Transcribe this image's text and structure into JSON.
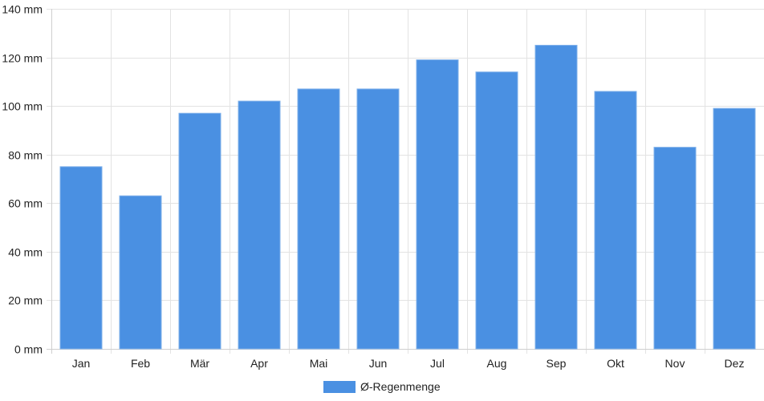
{
  "chart_data": {
    "type": "bar",
    "categories": [
      "Jan",
      "Feb",
      "Mär",
      "Apr",
      "Mai",
      "Jun",
      "Jul",
      "Aug",
      "Sep",
      "Okt",
      "Nov",
      "Dez"
    ],
    "series": [
      {
        "name": "Ø-Regenmenge",
        "values": [
          75,
          63,
          97,
          102,
          107,
          107,
          119,
          114,
          125,
          106,
          83,
          99
        ],
        "color": "#4a90e2"
      }
    ],
    "y_ticks": [
      "0 mm",
      "20 mm",
      "40 mm",
      "60 mm",
      "80 mm",
      "100 mm",
      "120 mm",
      "140 mm"
    ],
    "ylim": [
      0,
      140
    ],
    "grid": true,
    "legend_position": "bottom-center",
    "title": "",
    "xlabel": "",
    "ylabel": ""
  },
  "legend": {
    "label": "Ø-Regenmenge"
  }
}
